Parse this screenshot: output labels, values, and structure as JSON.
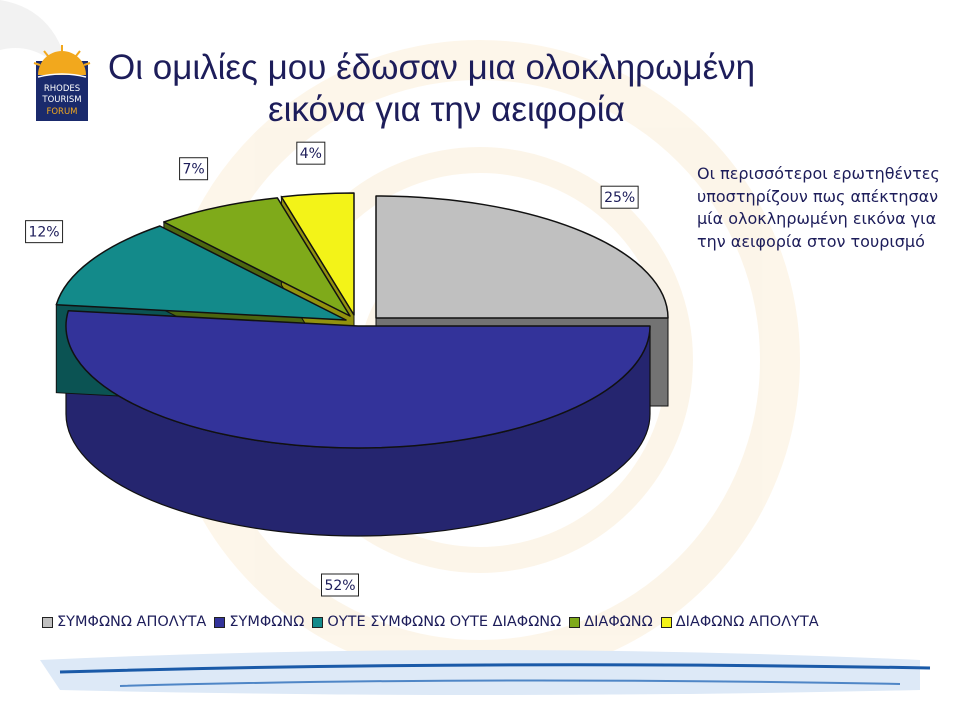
{
  "slide": {
    "title_line1": "Οι ομιλίες μου έδωσαν μια ολοκληρωμένη",
    "title_line2": "εικόνα για την αειφορία",
    "note": "Οι περισσότεροι ερωτηθέντες υποστηρίζουν πως απέκτησαν μία ολοκληρωμένη εικόνα για την αειφορία στον τουρισμό",
    "logo": {
      "line1": "RHODES",
      "line2": "TOURISM",
      "line3": "FORUM"
    },
    "colors": {
      "title": "#1d1d5a",
      "watermark": "#fbeed8",
      "wave": "#1a5aa8",
      "logo_bg": "#1a2a6c",
      "logo_sun": "#f2a81d"
    }
  },
  "chart_data": {
    "type": "pie",
    "title": "",
    "categories": [
      "ΣΥΜΦΩΝΩ ΑΠΟΛΥΤΑ",
      "ΣΥΜΦΩΝΩ",
      "ΟΥΤΕ ΣΥΜΦΩΝΩ ΟΥΤΕ ΔΙΑΦΩΝΩ",
      "ΔΙΑΦΩΝΩ",
      "ΔΙΑΦΩΝΩ ΑΠΟΛΥΤΑ"
    ],
    "values": [
      25,
      52,
      12,
      7,
      4
    ],
    "labels": [
      "25%",
      "52%",
      "12%",
      "7%",
      "4%"
    ],
    "colors": [
      "#c0c0c0",
      "#33339a",
      "#138a8a",
      "#7faa1a",
      "#f3f318"
    ],
    "exploded": true,
    "three_d": true,
    "legend_position": "bottom"
  }
}
